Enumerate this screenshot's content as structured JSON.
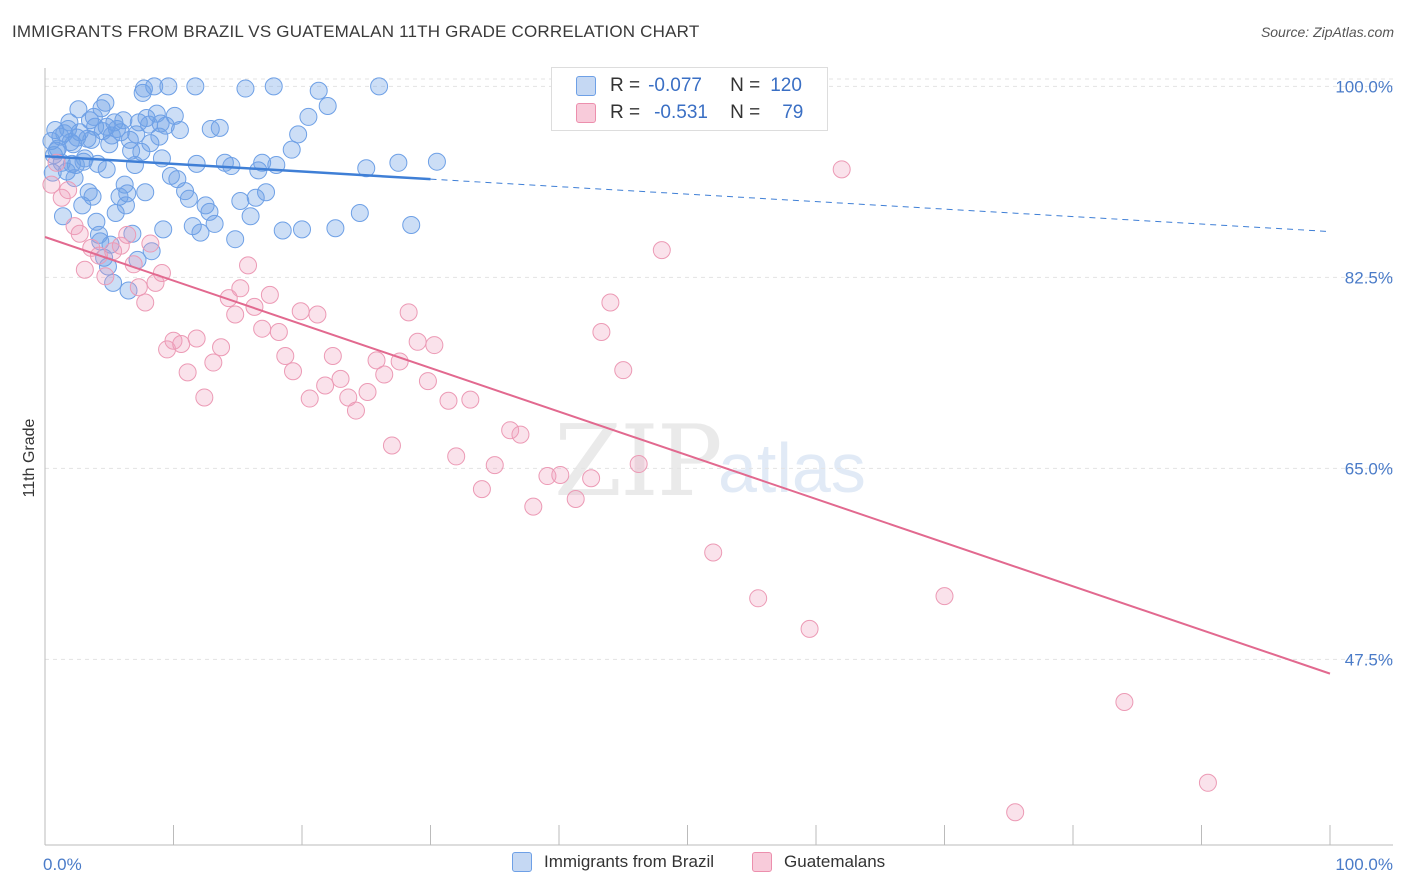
{
  "title": "IMMIGRANTS FROM BRAZIL VS GUATEMALAN 11TH GRADE CORRELATION CHART",
  "source": "Source: ZipAtlas.com",
  "watermark": {
    "zip": "ZIP",
    "atlas": "atlas"
  },
  "legend": {
    "r_label": "R =",
    "n_label": "N =",
    "series": [
      {
        "name": "Immigrants from Brazil",
        "r": "-0.077",
        "n": "120",
        "color": "#6ea0e6",
        "fill": "#c5d8f3"
      },
      {
        "name": "Guatemalans",
        "r": "-0.531",
        "n": "79",
        "color": "#ec8fad",
        "fill": "#f8cbda"
      }
    ]
  },
  "chart_data": {
    "type": "scatter",
    "title": "IMMIGRANTS FROM BRAZIL VS GUATEMALAN 11TH GRADE CORRELATION CHART",
    "xlabel": "",
    "ylabel": "11th Grade",
    "xlim": [
      0,
      100
    ],
    "ylim": [
      30.5,
      101.5
    ],
    "x_tick_labels": [
      "0.0%",
      "100.0%"
    ],
    "y_ticks": [
      47.5,
      65.0,
      82.5,
      100.0
    ],
    "y_tick_labels": [
      "47.5%",
      "65.0%",
      "82.5%",
      "100.0%"
    ],
    "grid": true,
    "series": [
      {
        "name": "Immigrants from Brazil",
        "color": "#3f7fd6",
        "trend": {
          "x": [
            0,
            30
          ],
          "y": [
            93.6,
            91.5
          ],
          "dashed_to": [
            100,
            86.7
          ]
        },
        "points": [
          [
            0.5,
            95.0
          ],
          [
            0.6,
            92.1
          ],
          [
            0.7,
            93.7
          ],
          [
            0.8,
            96.0
          ],
          [
            0.9,
            94.1
          ],
          [
            1.0,
            94.3
          ],
          [
            1.2,
            95.4
          ],
          [
            1.3,
            93.0
          ],
          [
            1.5,
            95.7
          ],
          [
            1.7,
            92.2
          ],
          [
            1.8,
            96.1
          ],
          [
            2.0,
            94.9
          ],
          [
            2.1,
            92.9
          ],
          [
            2.2,
            94.7
          ],
          [
            2.4,
            92.8
          ],
          [
            2.5,
            95.3
          ],
          [
            2.7,
            95.8
          ],
          [
            2.9,
            89.1
          ],
          [
            3.0,
            93.1
          ],
          [
            3.1,
            93.4
          ],
          [
            3.3,
            95.2
          ],
          [
            3.5,
            96.9
          ],
          [
            3.6,
            95.1
          ],
          [
            3.8,
            97.2
          ],
          [
            3.9,
            96.3
          ],
          [
            4.0,
            87.6
          ],
          [
            4.1,
            92.9
          ],
          [
            4.2,
            86.4
          ],
          [
            4.4,
            98.0
          ],
          [
            4.5,
            95.9
          ],
          [
            4.6,
            84.3
          ],
          [
            4.7,
            98.5
          ],
          [
            4.8,
            96.3
          ],
          [
            4.9,
            83.5
          ],
          [
            5.0,
            94.7
          ],
          [
            5.1,
            85.5
          ],
          [
            5.2,
            95.5
          ],
          [
            5.4,
            96.7
          ],
          [
            5.5,
            88.4
          ],
          [
            5.6,
            96.1
          ],
          [
            5.8,
            89.9
          ],
          [
            5.9,
            95.8
          ],
          [
            6.1,
            96.9
          ],
          [
            6.2,
            91.0
          ],
          [
            6.4,
            90.2
          ],
          [
            6.6,
            95.1
          ],
          [
            6.7,
            94.1
          ],
          [
            6.8,
            86.5
          ],
          [
            7.0,
            92.8
          ],
          [
            7.1,
            95.6
          ],
          [
            7.3,
            96.7
          ],
          [
            7.5,
            94.0
          ],
          [
            7.6,
            99.4
          ],
          [
            7.8,
            90.3
          ],
          [
            7.9,
            97.1
          ],
          [
            8.1,
            96.5
          ],
          [
            8.2,
            94.8
          ],
          [
            8.5,
            100.0
          ],
          [
            8.7,
            97.5
          ],
          [
            8.9,
            95.4
          ],
          [
            9.0,
            96.6
          ],
          [
            9.2,
            86.9
          ],
          [
            9.4,
            96.4
          ],
          [
            9.6,
            100.0
          ],
          [
            9.8,
            91.8
          ],
          [
            10.1,
            97.3
          ],
          [
            10.5,
            96.0
          ],
          [
            10.9,
            90.4
          ],
          [
            11.2,
            89.7
          ],
          [
            11.5,
            87.2
          ],
          [
            11.8,
            92.9
          ],
          [
            12.1,
            86.6
          ],
          [
            12.5,
            89.1
          ],
          [
            12.8,
            88.5
          ],
          [
            13.2,
            87.4
          ],
          [
            13.6,
            96.2
          ],
          [
            14.0,
            93.0
          ],
          [
            14.5,
            92.7
          ],
          [
            15.2,
            89.5
          ],
          [
            15.6,
            99.8
          ],
          [
            16.0,
            88.1
          ],
          [
            16.4,
            89.8
          ],
          [
            16.9,
            93.0
          ],
          [
            17.2,
            90.3
          ],
          [
            17.8,
            100.0
          ],
          [
            18.5,
            86.8
          ],
          [
            19.2,
            94.2
          ],
          [
            19.7,
            95.6
          ],
          [
            20.5,
            97.2
          ],
          [
            21.3,
            99.6
          ],
          [
            22.6,
            87.0
          ],
          [
            24.5,
            88.4
          ],
          [
            26.0,
            100.0
          ],
          [
            27.5,
            93.0
          ],
          [
            28.5,
            87.3
          ],
          [
            30.5,
            93.1
          ],
          [
            1.4,
            88.1
          ],
          [
            2.3,
            91.6
          ],
          [
            3.4,
            90.3
          ],
          [
            4.3,
            85.8
          ],
          [
            5.3,
            82.0
          ],
          [
            6.5,
            81.3
          ],
          [
            7.2,
            84.1
          ],
          [
            8.3,
            84.9
          ],
          [
            9.1,
            93.4
          ],
          [
            10.3,
            91.5
          ],
          [
            11.7,
            100.0
          ],
          [
            12.9,
            96.1
          ],
          [
            14.8,
            86.0
          ],
          [
            16.6,
            92.3
          ],
          [
            18.0,
            92.8
          ],
          [
            20.0,
            86.9
          ],
          [
            22.0,
            98.2
          ],
          [
            25.0,
            92.5
          ],
          [
            1.9,
            96.7
          ],
          [
            2.6,
            97.9
          ],
          [
            3.7,
            89.9
          ],
          [
            4.8,
            92.4
          ],
          [
            6.3,
            89.1
          ],
          [
            7.7,
            99.8
          ]
        ]
      },
      {
        "name": "Guatemalans",
        "color": "#e2698f",
        "trend": {
          "x": [
            0,
            100
          ],
          "y": [
            86.2,
            46.2
          ]
        },
        "points": [
          [
            0.5,
            91.0
          ],
          [
            0.9,
            93.0
          ],
          [
            1.3,
            89.8
          ],
          [
            1.8,
            90.5
          ],
          [
            2.3,
            87.2
          ],
          [
            2.7,
            86.5
          ],
          [
            3.1,
            83.2
          ],
          [
            3.6,
            85.2
          ],
          [
            4.2,
            84.5
          ],
          [
            4.7,
            82.6
          ],
          [
            5.3,
            84.9
          ],
          [
            5.9,
            85.4
          ],
          [
            6.4,
            86.4
          ],
          [
            6.9,
            83.7
          ],
          [
            7.3,
            81.6
          ],
          [
            7.8,
            80.2
          ],
          [
            8.2,
            85.6
          ],
          [
            8.6,
            82.0
          ],
          [
            9.1,
            82.9
          ],
          [
            9.5,
            75.9
          ],
          [
            10.0,
            76.7
          ],
          [
            10.6,
            76.4
          ],
          [
            11.1,
            73.8
          ],
          [
            11.8,
            76.9
          ],
          [
            12.4,
            71.5
          ],
          [
            13.1,
            74.7
          ],
          [
            13.7,
            76.1
          ],
          [
            14.3,
            80.6
          ],
          [
            14.8,
            79.1
          ],
          [
            15.2,
            81.5
          ],
          [
            15.8,
            83.6
          ],
          [
            16.3,
            79.8
          ],
          [
            16.9,
            77.8
          ],
          [
            17.5,
            80.9
          ],
          [
            18.2,
            77.5
          ],
          [
            18.7,
            75.3
          ],
          [
            19.3,
            73.9
          ],
          [
            19.9,
            79.4
          ],
          [
            20.6,
            71.4
          ],
          [
            21.2,
            79.1
          ],
          [
            21.8,
            72.6
          ],
          [
            22.4,
            75.3
          ],
          [
            23.0,
            73.2
          ],
          [
            23.6,
            71.5
          ],
          [
            24.2,
            70.3
          ],
          [
            25.1,
            72.0
          ],
          [
            25.8,
            74.9
          ],
          [
            26.4,
            73.6
          ],
          [
            27.0,
            67.1
          ],
          [
            27.6,
            74.8
          ],
          [
            28.3,
            79.3
          ],
          [
            29.0,
            76.6
          ],
          [
            29.8,
            73.0
          ],
          [
            30.3,
            76.3
          ],
          [
            31.4,
            71.2
          ],
          [
            32.0,
            66.1
          ],
          [
            33.1,
            71.3
          ],
          [
            34.0,
            63.1
          ],
          [
            35.0,
            65.3
          ],
          [
            36.2,
            68.5
          ],
          [
            37.0,
            68.1
          ],
          [
            38.0,
            61.5
          ],
          [
            39.1,
            64.3
          ],
          [
            40.1,
            64.4
          ],
          [
            41.3,
            62.2
          ],
          [
            42.5,
            64.1
          ],
          [
            43.3,
            77.5
          ],
          [
            44.0,
            80.2
          ],
          [
            45.0,
            74.0
          ],
          [
            46.2,
            65.4
          ],
          [
            48.0,
            85.0
          ],
          [
            52.0,
            57.3
          ],
          [
            55.5,
            53.1
          ],
          [
            59.5,
            50.3
          ],
          [
            62.0,
            92.4
          ],
          [
            70.0,
            53.3
          ],
          [
            75.5,
            33.5
          ],
          [
            84.0,
            43.6
          ],
          [
            90.5,
            36.2
          ]
        ]
      }
    ]
  }
}
